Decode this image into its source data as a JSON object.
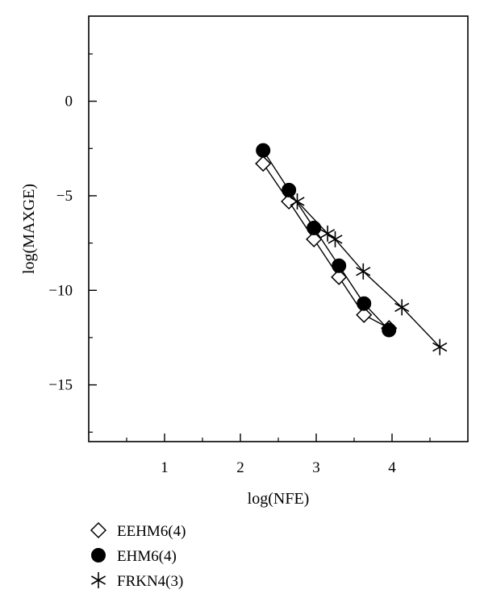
{
  "chart_data": {
    "type": "line",
    "title": "",
    "xlabel": "log(NFE)",
    "ylabel": "log(MAXGE)",
    "xlim": [
      0,
      5.0
    ],
    "ylim": [
      -18,
      4.5
    ],
    "xticks": [
      1,
      2,
      3,
      4
    ],
    "xtick_labels": [
      "1",
      "2",
      "3",
      "4"
    ],
    "xminor": [
      0.5,
      1.5,
      2.5,
      3.5,
      4.5
    ],
    "yticks": [
      0,
      -5,
      -10,
      -15
    ],
    "ytick_labels": [
      "0",
      "−5",
      "−10",
      "−15"
    ],
    "yminor": [
      2.5,
      -2.5,
      -7.5,
      -12.5,
      -17.5
    ],
    "grid": false,
    "legend_position": "bottom-left, below plot",
    "series": [
      {
        "name": "EEHM6(4)",
        "marker": "open-diamond",
        "x": [
          2.3,
          2.64,
          2.97,
          3.3,
          3.63,
          3.96
        ],
        "y": [
          -3.3,
          -5.3,
          -7.3,
          -9.3,
          -11.3,
          -12.0
        ]
      },
      {
        "name": "EHM6(4)",
        "marker": "filled-circle",
        "x": [
          2.3,
          2.64,
          2.97,
          3.3,
          3.63,
          3.96
        ],
        "y": [
          -2.6,
          -4.7,
          -6.7,
          -8.7,
          -10.7,
          -12.1
        ]
      },
      {
        "name": "FRKN4(3)",
        "marker": "star",
        "x": [
          2.75,
          3.15,
          3.25,
          3.62,
          4.13,
          4.63
        ],
        "y": [
          -5.3,
          -7.0,
          -7.3,
          -9.0,
          -10.9,
          -13.0
        ]
      }
    ]
  }
}
